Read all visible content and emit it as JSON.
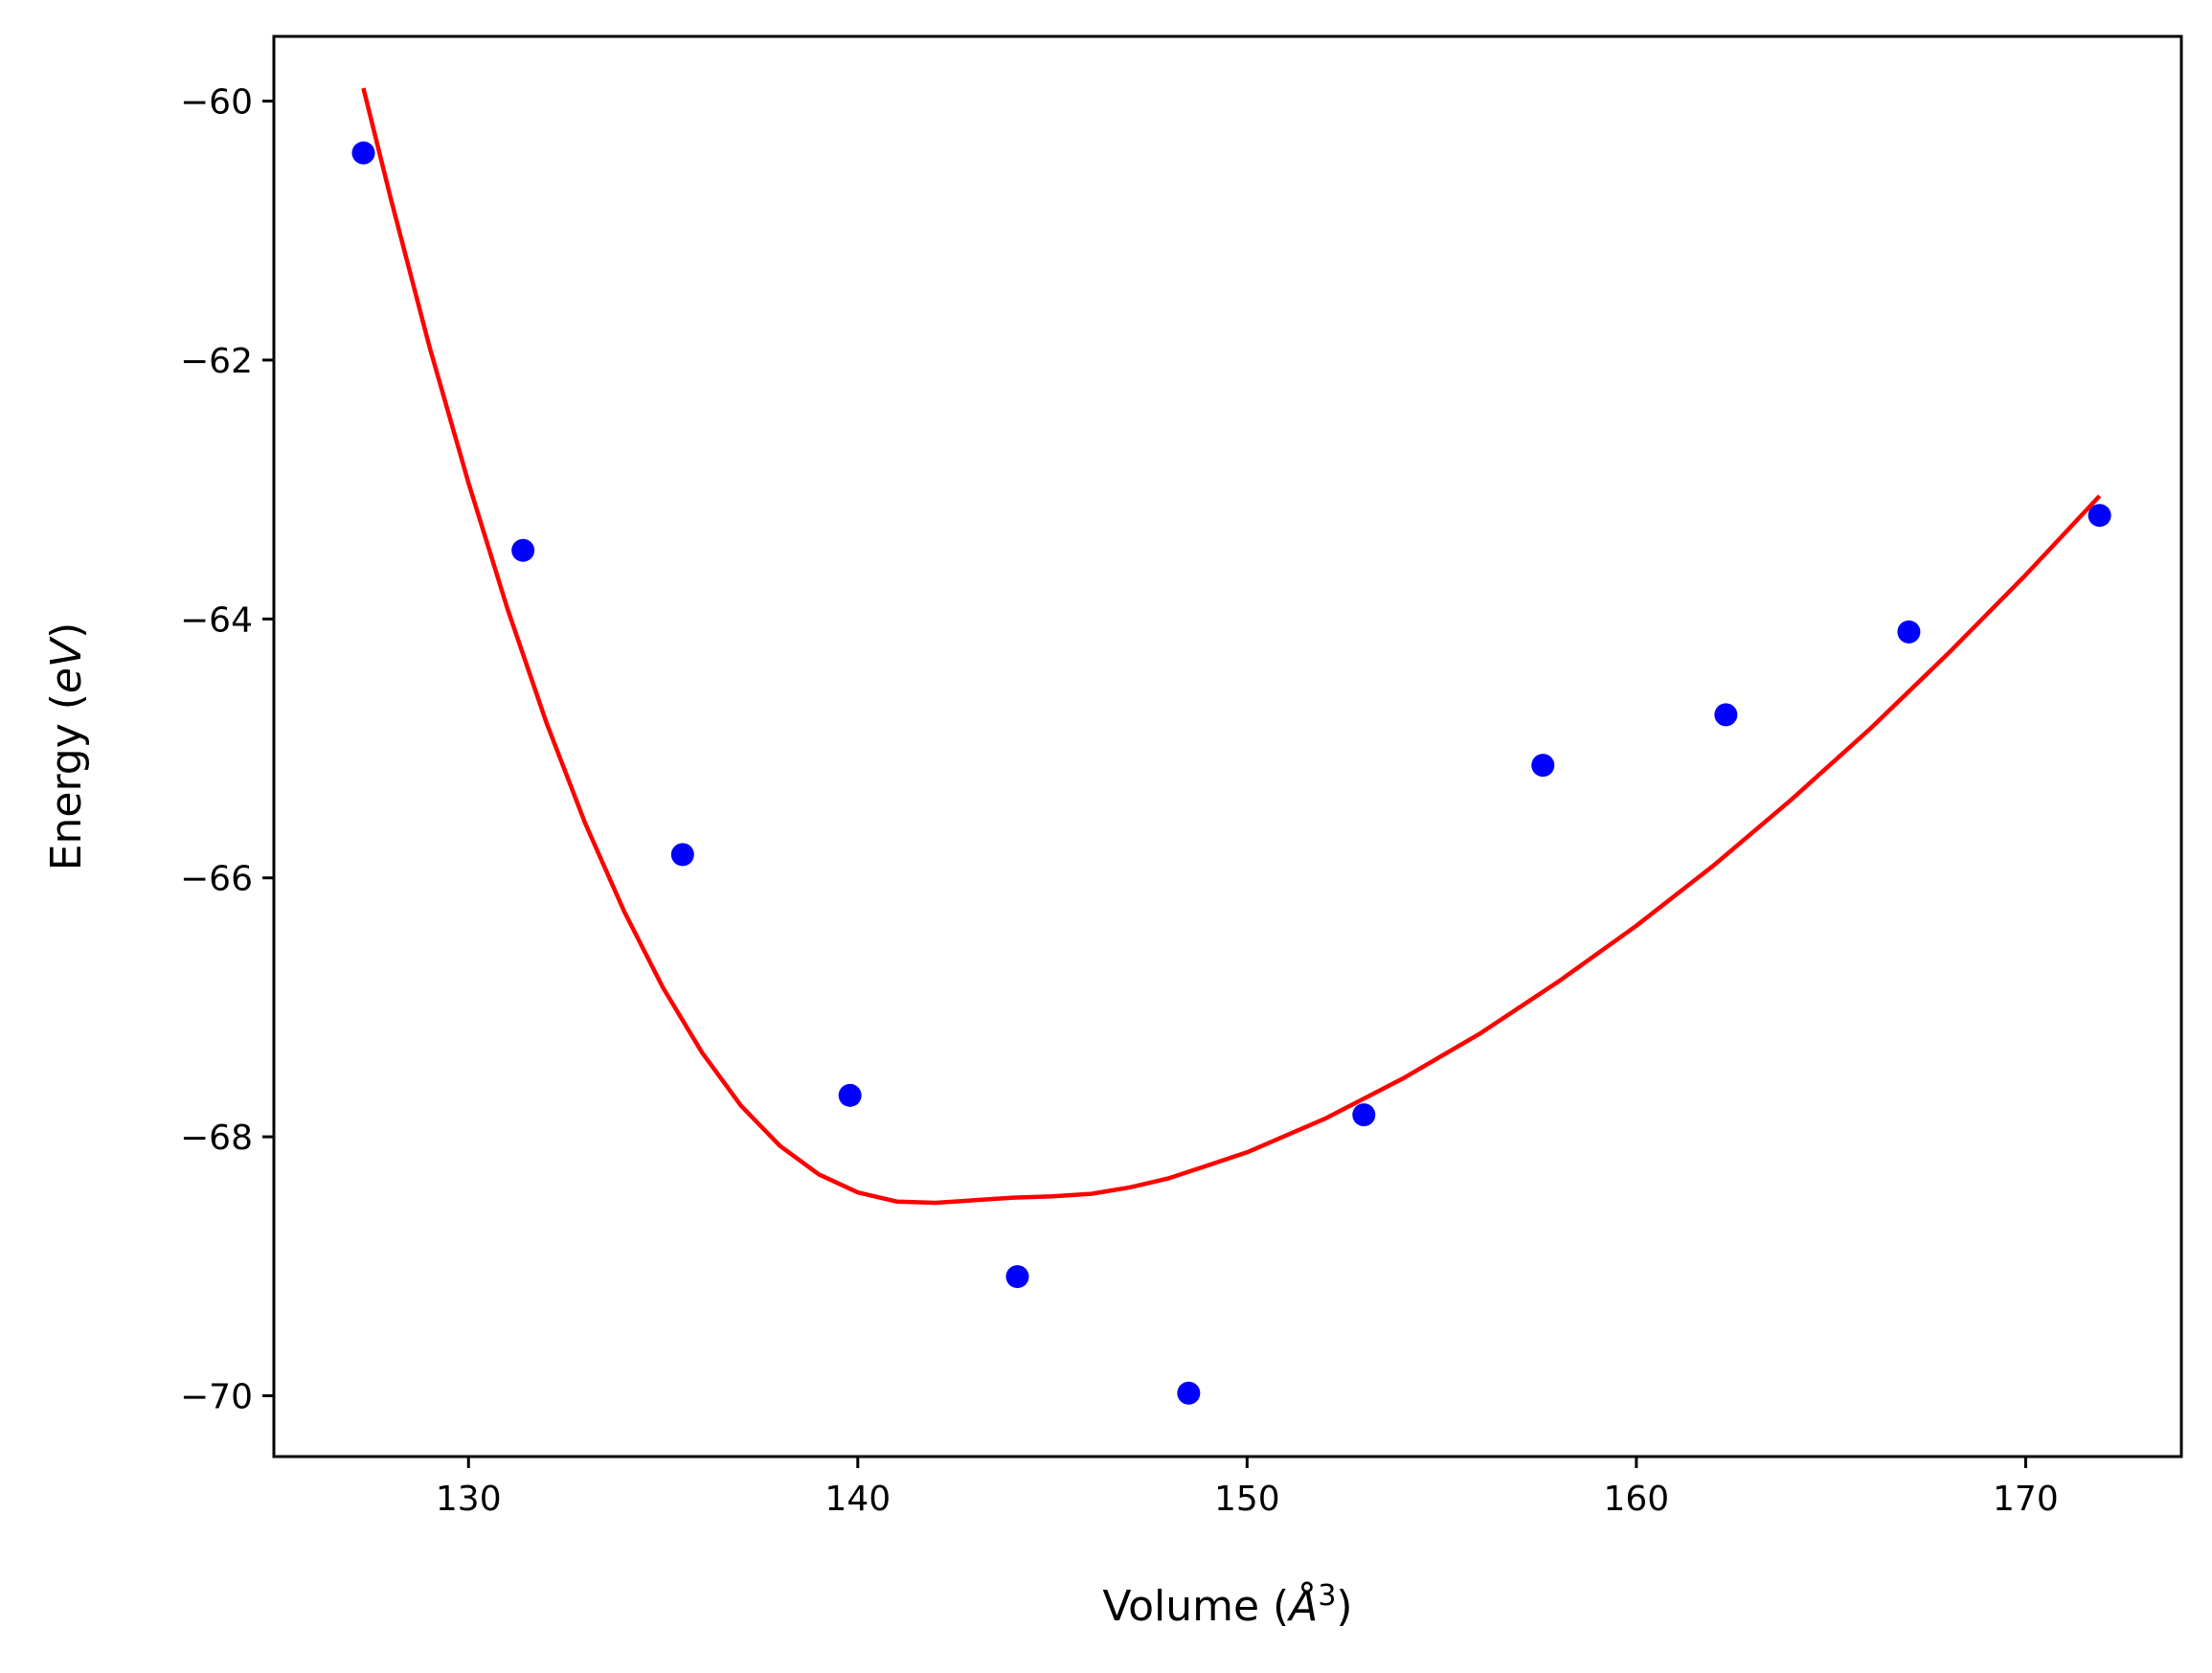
{
  "chart_data": {
    "type": "scatter",
    "xlabel_main": "Volume (",
    "xlabel_unit": "Å",
    "xlabel_exp": "3",
    "xlabel_close": ")",
    "ylabel_main": "Energy (",
    "ylabel_unit": "eV",
    "ylabel_close": ")",
    "xlim": [
      125,
      174
    ],
    "ylim": [
      -70.47,
      -59.5
    ],
    "xticks": [
      130,
      140,
      150,
      160,
      170
    ],
    "yticks": [
      -60,
      -62,
      -64,
      -66,
      -68,
      -70
    ],
    "grid": false,
    "legend": "none",
    "series": [
      {
        "kind": "points",
        "color": "#0000ff",
        "x": [
          127.3,
          131.4,
          135.5,
          139.8,
          144.1,
          148.5,
          153.0,
          157.6,
          162.3,
          167.0,
          171.9
        ],
        "y": [
          -60.4,
          -63.47,
          -65.82,
          -67.68,
          -69.08,
          -69.98,
          -67.83,
          -65.13,
          -64.74,
          -64.1,
          -63.2
        ]
      },
      {
        "kind": "line",
        "color": "#ff0000",
        "x": [
          127.3,
          128.0,
          129.0,
          130.0,
          131.0,
          132.0,
          133.0,
          134.0,
          135.0,
          136.0,
          137.0,
          138.0,
          139.0,
          140.0,
          141.0,
          142.0,
          143.0,
          144.0,
          145.0,
          146.0,
          147.0,
          148.0,
          150.0,
          152.0,
          154.0,
          156.0,
          158.0,
          160.0,
          162.0,
          164.0,
          166.0,
          168.0,
          170.0,
          171.9
        ],
        "y": [
          -59.9,
          -60.75,
          -61.9,
          -62.95,
          -63.92,
          -64.8,
          -65.58,
          -66.26,
          -66.85,
          -67.35,
          -67.76,
          -68.07,
          -68.29,
          -68.43,
          -68.5,
          -68.51,
          -68.49,
          -68.47,
          -68.46,
          -68.44,
          -68.39,
          -68.32,
          -68.12,
          -67.86,
          -67.55,
          -67.2,
          -66.8,
          -66.37,
          -65.9,
          -65.39,
          -64.85,
          -64.27,
          -63.66,
          -63.05
        ]
      }
    ]
  }
}
